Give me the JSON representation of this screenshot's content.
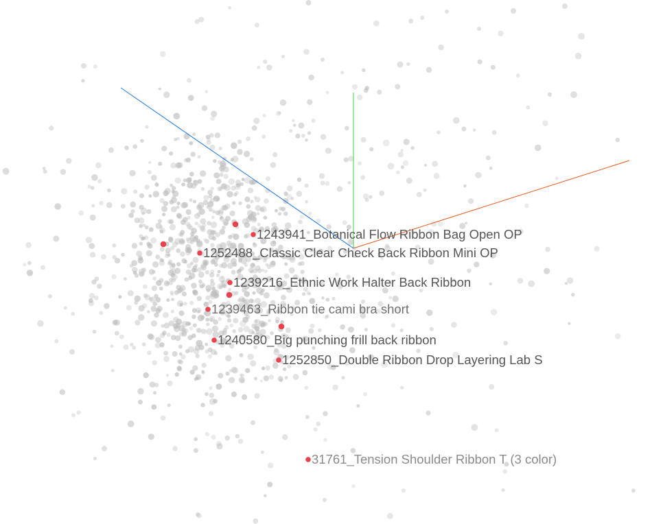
{
  "chart_data": {
    "type": "scatter",
    "title": "",
    "xlabel": "",
    "ylabel": "",
    "axes": [
      {
        "color": "#e8561a"
      },
      {
        "color": "#3fd23f"
      },
      {
        "color": "#1a74e8"
      }
    ],
    "highlight_color": "#e8434c",
    "point_color": "#bdbdbd",
    "highlighted": [
      {
        "label": "1243941_Botanical Flow Ribbon Bag Open OP"
      },
      {
        "label": "1252488_Classic Clear Check Back Ribbon Mini OP"
      },
      {
        "label": "1239216_Ethnic Work Halter Back Ribbon"
      },
      {
        "label": "1239463_Ribbon tie cami bra short"
      },
      {
        "label": "1240580_Big punching frill back ribbon"
      },
      {
        "label": "1252850_Double Ribbon Drop Layering Lab S"
      },
      {
        "label": "31761_Tension Shoulder Ribbon T (3 color)"
      },
      {
        "label": ""
      },
      {
        "label": ""
      },
      {
        "label": ""
      },
      {
        "label": ""
      }
    ]
  }
}
